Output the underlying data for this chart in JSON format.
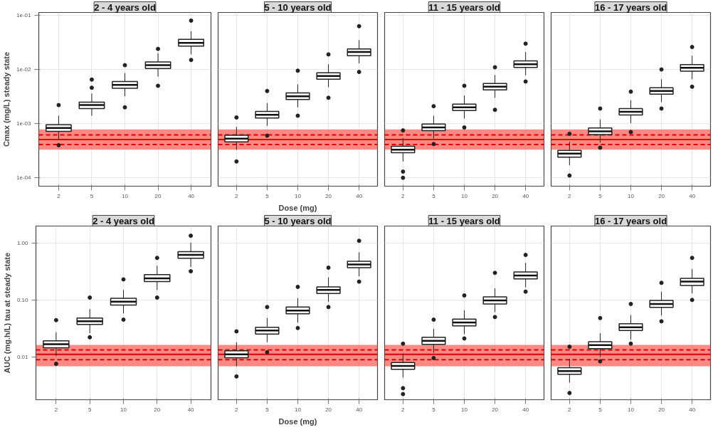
{
  "chart_data": [
    {
      "type": "box",
      "title": "2 - 4 years old",
      "ylabel": "Cmax (mg/L) steady state",
      "categories": [
        "2",
        "5",
        "10",
        "20",
        "40"
      ],
      "log": true,
      "grid": true,
      "ylim": [
        7e-05,
        0.113
      ],
      "yticks": [
        {
          "value": 0.1,
          "label": "1e-01"
        },
        {
          "value": 0.01,
          "label": "1e-02"
        },
        {
          "value": 0.001,
          "label": "1e-03"
        },
        {
          "value": 0.0001,
          "label": "1e-04"
        }
      ],
      "boxes": [
        {
          "low": 0.00051,
          "q1": 0.00072,
          "median": 0.00083,
          "q3": 0.00095,
          "high": 0.0014,
          "outliers": [
            0.0022,
            0.0004
          ]
        },
        {
          "low": 0.0014,
          "q1": 0.0019,
          "median": 0.0022,
          "q3": 0.0025,
          "high": 0.0036,
          "outliers": [
            0.0046,
            0.0065
          ]
        },
        {
          "low": 0.0032,
          "q1": 0.0045,
          "median": 0.0052,
          "q3": 0.006,
          "high": 0.0086,
          "outliers": [
            0.012,
            0.002
          ]
        },
        {
          "low": 0.0074,
          "q1": 0.0104,
          "median": 0.012,
          "q3": 0.0138,
          "high": 0.02,
          "outliers": [
            0.024,
            0.005
          ]
        },
        {
          "low": 0.019,
          "q1": 0.027,
          "median": 0.031,
          "q3": 0.036,
          "high": 0.051,
          "outliers": [
            0.08,
            0.015
          ]
        }
      ],
      "bands": [
        {
          "axis": "y",
          "from": 0.00033,
          "to": 0.00078,
          "color": "#f8635a"
        }
      ],
      "ref_lines": [
        {
          "axis": "y",
          "value": 0.00051,
          "color": "#e00000",
          "line_style": "solid"
        },
        {
          "axis": "y",
          "value": 0.00062,
          "color": "#e00000",
          "line_style": "dashed"
        },
        {
          "axis": "y",
          "value": 0.00041,
          "color": "#e00000",
          "line_style": "dashed"
        }
      ]
    },
    {
      "type": "box",
      "title": "5 - 10 years old",
      "xlabel": "Dose (mg)",
      "categories": [
        "2",
        "5",
        "10",
        "20",
        "40"
      ],
      "log": true,
      "grid": true,
      "tick_labels": "x",
      "ylim": [
        7e-05,
        0.113
      ],
      "yticks": [
        {
          "value": 0.1,
          "label": null
        },
        {
          "value": 0.01,
          "label": null
        },
        {
          "value": 0.001,
          "label": null
        },
        {
          "value": 0.0001,
          "label": null
        }
      ],
      "boxes": [
        {
          "low": 0.00033,
          "q1": 0.00046,
          "median": 0.00053,
          "q3": 0.00061,
          "high": 0.00087,
          "outliers": [
            0.0013,
            0.0002
          ]
        },
        {
          "low": 0.00091,
          "q1": 0.00127,
          "median": 0.00146,
          "q3": 0.00168,
          "high": 0.0024,
          "outliers": [
            0.004,
            0.0006
          ]
        },
        {
          "low": 0.002,
          "q1": 0.0028,
          "median": 0.0032,
          "q3": 0.0037,
          "high": 0.0053,
          "outliers": [
            0.0095,
            0.0014
          ]
        },
        {
          "low": 0.0047,
          "q1": 0.0066,
          "median": 0.0076,
          "q3": 0.0087,
          "high": 0.0125,
          "outliers": [
            0.019,
            0.003
          ]
        },
        {
          "low": 0.013,
          "q1": 0.018,
          "median": 0.021,
          "q3": 0.024,
          "high": 0.035,
          "outliers": [
            0.063,
            0.009
          ]
        }
      ],
      "bands": [
        {
          "axis": "y",
          "from": 0.00033,
          "to": 0.00078,
          "color": "#f8635a"
        }
      ],
      "ref_lines": [
        {
          "axis": "y",
          "value": 0.00051,
          "color": "#e00000",
          "line_style": "solid"
        },
        {
          "axis": "y",
          "value": 0.00062,
          "color": "#e00000",
          "line_style": "dashed"
        },
        {
          "axis": "y",
          "value": 0.00041,
          "color": "#e00000",
          "line_style": "dashed"
        }
      ]
    },
    {
      "type": "box",
      "title": "11 - 15 years old",
      "categories": [
        "2",
        "5",
        "10",
        "20",
        "40"
      ],
      "log": true,
      "grid": true,
      "tick_labels": "x",
      "ylim": [
        7e-05,
        0.113
      ],
      "yticks": [
        {
          "value": 0.1,
          "label": null
        },
        {
          "value": 0.01,
          "label": null
        },
        {
          "value": 0.001,
          "label": null
        },
        {
          "value": 0.0001,
          "label": null
        }
      ],
      "boxes": [
        {
          "low": 0.0002,
          "q1": 0.00029,
          "median": 0.00033,
          "q3": 0.00038,
          "high": 0.00054,
          "outliers": [
            0.00075,
            0.00013,
            0.0001
          ]
        },
        {
          "low": 0.00053,
          "q1": 0.00074,
          "median": 0.00085,
          "q3": 0.00098,
          "high": 0.0014,
          "outliers": [
            0.0021,
            0.00042
          ]
        },
        {
          "low": 0.00124,
          "q1": 0.00174,
          "median": 0.002,
          "q3": 0.0023,
          "high": 0.0033,
          "outliers": [
            0.005,
            0.00085
          ]
        },
        {
          "low": 0.003,
          "q1": 0.0042,
          "median": 0.0048,
          "q3": 0.0055,
          "high": 0.0079,
          "outliers": [
            0.011,
            0.0018
          ]
        },
        {
          "low": 0.0078,
          "q1": 0.0109,
          "median": 0.0125,
          "q3": 0.0144,
          "high": 0.021,
          "outliers": [
            0.03,
            0.006
          ]
        }
      ],
      "bands": [
        {
          "axis": "y",
          "from": 0.00033,
          "to": 0.00078,
          "color": "#f8635a"
        }
      ],
      "ref_lines": [
        {
          "axis": "y",
          "value": 0.00051,
          "color": "#e00000",
          "line_style": "solid"
        },
        {
          "axis": "y",
          "value": 0.00062,
          "color": "#e00000",
          "line_style": "dashed"
        },
        {
          "axis": "y",
          "value": 0.00041,
          "color": "#e00000",
          "line_style": "dashed"
        }
      ]
    },
    {
      "type": "box",
      "title": "16 - 17 years old",
      "categories": [
        "2",
        "5",
        "10",
        "20",
        "40"
      ],
      "log": true,
      "grid": true,
      "tick_labels": "x",
      "ylim": [
        7e-05,
        0.113
      ],
      "yticks": [
        {
          "value": 0.1,
          "label": null
        },
        {
          "value": 0.01,
          "label": null
        },
        {
          "value": 0.001,
          "label": null
        },
        {
          "value": 0.0001,
          "label": null
        }
      ],
      "boxes": [
        {
          "low": 0.00017,
          "q1": 0.00024,
          "median": 0.00028,
          "q3": 0.00032,
          "high": 0.00046,
          "outliers": [
            0.00065,
            0.00011
          ]
        },
        {
          "low": 0.00045,
          "q1": 0.00063,
          "median": 0.00072,
          "q3": 0.00083,
          "high": 0.0012,
          "outliers": [
            0.0019,
            0.00036
          ]
        },
        {
          "low": 0.00102,
          "q1": 0.00144,
          "median": 0.00165,
          "q3": 0.0019,
          "high": 0.0027,
          "outliers": [
            0.0039,
            0.0007
          ]
        },
        {
          "low": 0.0025,
          "q1": 0.0035,
          "median": 0.004,
          "q3": 0.0046,
          "high": 0.0066,
          "outliers": [
            0.01,
            0.0019
          ]
        },
        {
          "low": 0.0066,
          "q1": 0.0093,
          "median": 0.0107,
          "q3": 0.0123,
          "high": 0.018,
          "outliers": [
            0.026,
            0.0048
          ]
        }
      ],
      "bands": [
        {
          "axis": "y",
          "from": 0.00033,
          "to": 0.00078,
          "color": "#f8635a"
        }
      ],
      "ref_lines": [
        {
          "axis": "y",
          "value": 0.00051,
          "color": "#e00000",
          "line_style": "solid"
        },
        {
          "axis": "y",
          "value": 0.00062,
          "color": "#e00000",
          "line_style": "dashed"
        },
        {
          "axis": "y",
          "value": 0.00041,
          "color": "#e00000",
          "line_style": "dashed"
        }
      ]
    },
    {
      "type": "box",
      "title": "2 - 4 years old",
      "ylabel": "AUC (mg.h/L) tau at steady state",
      "categories": [
        "2",
        "5",
        "10",
        "20",
        "40"
      ],
      "log": true,
      "grid": true,
      "ylim": [
        0.00175,
        2.0
      ],
      "yticks": [
        {
          "value": 1,
          "label": "1.00"
        },
        {
          "value": 0.1,
          "label": "0.10"
        },
        {
          "value": 0.01,
          "label": "0.01"
        }
      ],
      "boxes": [
        {
          "low": 0.0103,
          "q1": 0.0144,
          "median": 0.0166,
          "q3": 0.0191,
          "high": 0.027,
          "outliers": [
            0.044,
            0.0075
          ]
        },
        {
          "low": 0.026,
          "q1": 0.037,
          "median": 0.042,
          "q3": 0.048,
          "high": 0.069,
          "outliers": [
            0.11,
            0.022
          ]
        },
        {
          "low": 0.058,
          "q1": 0.081,
          "median": 0.093,
          "q3": 0.107,
          "high": 0.15,
          "outliers": [
            0.23,
            0.045
          ]
        },
        {
          "low": 0.15,
          "q1": 0.21,
          "median": 0.24,
          "q3": 0.28,
          "high": 0.4,
          "outliers": [
            0.55,
            0.11
          ]
        },
        {
          "low": 0.38,
          "q1": 0.54,
          "median": 0.62,
          "q3": 0.71,
          "high": 1.02,
          "outliers": [
            1.35,
            0.32
          ]
        }
      ],
      "bands": [
        {
          "axis": "y",
          "from": 0.0068,
          "to": 0.0162,
          "color": "#f8635a"
        }
      ],
      "ref_lines": [
        {
          "axis": "y",
          "value": 0.011,
          "color": "#e00000",
          "line_style": "solid"
        },
        {
          "axis": "y",
          "value": 0.0132,
          "color": "#e00000",
          "line_style": "dashed"
        },
        {
          "axis": "y",
          "value": 0.0089,
          "color": "#e00000",
          "line_style": "dashed"
        }
      ]
    },
    {
      "type": "box",
      "title": "5 - 10 years old",
      "xlabel": "Dose (mg)",
      "categories": [
        "2",
        "5",
        "10",
        "20",
        "40"
      ],
      "log": true,
      "grid": true,
      "tick_labels": "x",
      "ylim": [
        0.00175,
        2.0
      ],
      "yticks": [
        {
          "value": 1,
          "label": null
        },
        {
          "value": 0.1,
          "label": null
        },
        {
          "value": 0.01,
          "label": null
        }
      ],
      "boxes": [
        {
          "low": 0.0068,
          "q1": 0.0096,
          "median": 0.011,
          "q3": 0.0127,
          "high": 0.018,
          "outliers": [
            0.028,
            0.0045
          ]
        },
        {
          "low": 0.018,
          "q1": 0.025,
          "median": 0.029,
          "q3": 0.033,
          "high": 0.048,
          "outliers": [
            0.075,
            0.012
          ]
        },
        {
          "low": 0.04,
          "q1": 0.057,
          "median": 0.065,
          "q3": 0.075,
          "high": 0.107,
          "outliers": [
            0.17,
            0.032
          ]
        },
        {
          "low": 0.093,
          "q1": 0.13,
          "median": 0.15,
          "q3": 0.17,
          "high": 0.25,
          "outliers": [
            0.37,
            0.075
          ]
        },
        {
          "low": 0.26,
          "q1": 0.37,
          "median": 0.42,
          "q3": 0.48,
          "high": 0.69,
          "outliers": [
            1.1,
            0.21
          ]
        }
      ],
      "bands": [
        {
          "axis": "y",
          "from": 0.0068,
          "to": 0.0162,
          "color": "#f8635a"
        }
      ],
      "ref_lines": [
        {
          "axis": "y",
          "value": 0.011,
          "color": "#e00000",
          "line_style": "solid"
        },
        {
          "axis": "y",
          "value": 0.0132,
          "color": "#e00000",
          "line_style": "dashed"
        },
        {
          "axis": "y",
          "value": 0.0089,
          "color": "#e00000",
          "line_style": "dashed"
        }
      ]
    },
    {
      "type": "box",
      "title": "11 - 15 years old",
      "categories": [
        "2",
        "5",
        "10",
        "20",
        "40"
      ],
      "log": true,
      "grid": true,
      "tick_labels": "x",
      "ylim": [
        0.00175,
        2.0
      ],
      "yticks": [
        {
          "value": 1,
          "label": null
        },
        {
          "value": 0.1,
          "label": null
        },
        {
          "value": 0.01,
          "label": null
        }
      ],
      "boxes": [
        {
          "low": 0.0043,
          "q1": 0.006,
          "median": 0.0069,
          "q3": 0.0079,
          "high": 0.0114,
          "outliers": [
            0.017,
            0.0028,
            0.0022
          ]
        },
        {
          "low": 0.0118,
          "q1": 0.0165,
          "median": 0.019,
          "q3": 0.022,
          "high": 0.031,
          "outliers": [
            0.045,
            0.0095
          ]
        },
        {
          "low": 0.025,
          "q1": 0.035,
          "median": 0.04,
          "q3": 0.046,
          "high": 0.066,
          "outliers": [
            0.12,
            0.021
          ]
        },
        {
          "low": 0.061,
          "q1": 0.085,
          "median": 0.098,
          "q3": 0.113,
          "high": 0.16,
          "outliers": [
            0.3,
            0.05
          ]
        },
        {
          "low": 0.167,
          "q1": 0.235,
          "median": 0.27,
          "q3": 0.31,
          "high": 0.45,
          "outliers": [
            0.62,
            0.14
          ]
        }
      ],
      "bands": [
        {
          "axis": "y",
          "from": 0.0068,
          "to": 0.0162,
          "color": "#f8635a"
        }
      ],
      "ref_lines": [
        {
          "axis": "y",
          "value": 0.011,
          "color": "#e00000",
          "line_style": "solid"
        },
        {
          "axis": "y",
          "value": 0.0132,
          "color": "#e00000",
          "line_style": "dashed"
        },
        {
          "axis": "y",
          "value": 0.0089,
          "color": "#e00000",
          "line_style": "dashed"
        }
      ]
    },
    {
      "type": "box",
      "title": "16 - 17 years old",
      "categories": [
        "2",
        "5",
        "10",
        "20",
        "40"
      ],
      "log": true,
      "grid": true,
      "tick_labels": "x",
      "ylim": [
        0.00175,
        2.0
      ],
      "yticks": [
        {
          "value": 1,
          "label": null
        },
        {
          "value": 0.1,
          "label": null
        },
        {
          "value": 0.01,
          "label": null
        }
      ],
      "boxes": [
        {
          "low": 0.0035,
          "q1": 0.0049,
          "median": 0.0056,
          "q3": 0.0064,
          "high": 0.0092,
          "outliers": [
            0.015,
            0.0023
          ]
        },
        {
          "low": 0.0099,
          "q1": 0.0139,
          "median": 0.016,
          "q3": 0.0184,
          "high": 0.026,
          "outliers": [
            0.048,
            0.0083
          ]
        },
        {
          "low": 0.02,
          "q1": 0.029,
          "median": 0.033,
          "q3": 0.038,
          "high": 0.054,
          "outliers": [
            0.085,
            0.017
          ]
        },
        {
          "low": 0.053,
          "q1": 0.074,
          "median": 0.085,
          "q3": 0.098,
          "high": 0.14,
          "outliers": [
            0.2,
            0.042
          ]
        },
        {
          "low": 0.13,
          "q1": 0.18,
          "median": 0.21,
          "q3": 0.24,
          "high": 0.35,
          "outliers": [
            0.55,
            0.1
          ]
        }
      ],
      "bands": [
        {
          "axis": "y",
          "from": 0.0068,
          "to": 0.0162,
          "color": "#f8635a"
        }
      ],
      "ref_lines": [
        {
          "axis": "y",
          "value": 0.011,
          "color": "#e00000",
          "line_style": "solid"
        },
        {
          "axis": "y",
          "value": 0.0132,
          "color": "#e00000",
          "line_style": "dashed"
        },
        {
          "axis": "y",
          "value": 0.0089,
          "color": "#e00000",
          "line_style": "dashed"
        }
      ]
    }
  ]
}
